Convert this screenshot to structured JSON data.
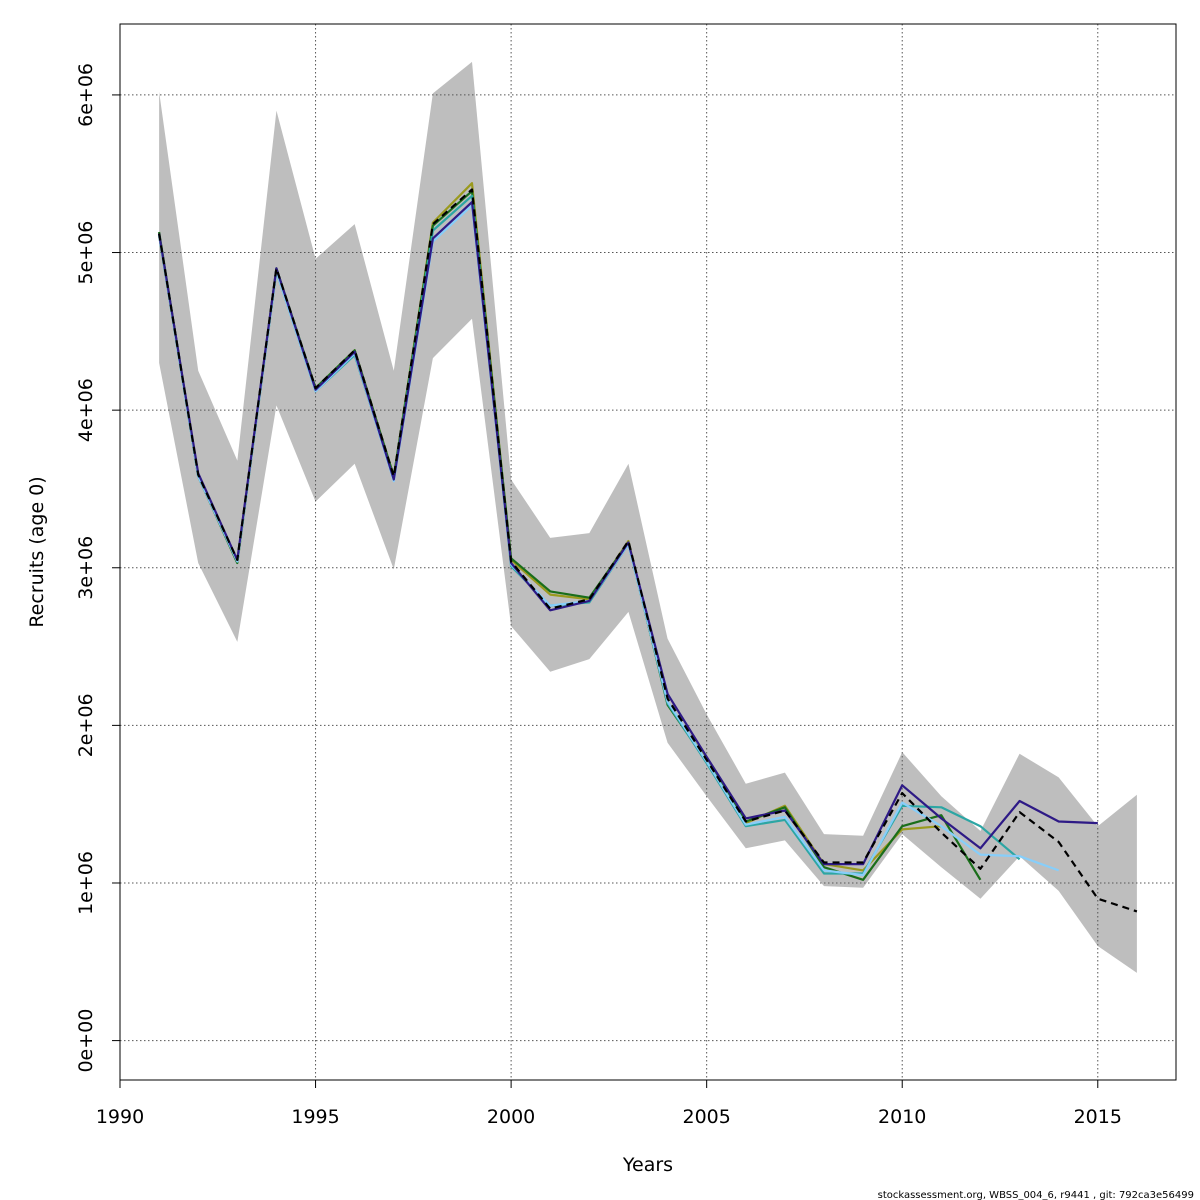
{
  "chart_data": {
    "type": "line",
    "xlabel": "Years",
    "ylabel": "Recruits (age 0)",
    "footnote": "stockassessment.org, WBSS_004_6, r9441 , git: 792ca3e56499",
    "xlim": [
      1990,
      2017
    ],
    "ylim": [
      -250000,
      6450000
    ],
    "x_ticks": [
      1990,
      1995,
      2000,
      2005,
      2010,
      2015
    ],
    "y_ticks": [
      0,
      1000000,
      2000000,
      3000000,
      4000000,
      5000000,
      6000000
    ],
    "y_tick_labels": [
      "0e+00",
      "1e+06",
      "2e+06",
      "3e+06",
      "4e+06",
      "5e+06",
      "6e+06"
    ],
    "grid": true,
    "band": {
      "x": [
        1991,
        1992,
        1993,
        1994,
        1995,
        1996,
        1997,
        1998,
        1999,
        2000,
        2001,
        2002,
        2003,
        2004,
        2005,
        2006,
        2007,
        2008,
        2009,
        2010,
        2011,
        2012,
        2013,
        2014,
        2015,
        2016
      ],
      "upper": [
        6020000,
        4250000,
        3680000,
        5900000,
        4960000,
        5180000,
        4250000,
        6010000,
        6210000,
        3560000,
        3190000,
        3220000,
        3660000,
        2550000,
        2070000,
        1630000,
        1700000,
        1310000,
        1300000,
        1830000,
        1550000,
        1330000,
        1820000,
        1670000,
        1360000,
        1560000
      ],
      "lower": [
        4300000,
        3030000,
        2530000,
        4030000,
        3420000,
        3660000,
        2990000,
        4330000,
        4580000,
        2630000,
        2340000,
        2420000,
        2720000,
        1890000,
        1550000,
        1220000,
        1270000,
        980000,
        970000,
        1310000,
        1100000,
        900000,
        1170000,
        950000,
        600000,
        430000
      ],
      "color": "#bebebe"
    },
    "series": [
      {
        "color": "#000000",
        "dashed": true,
        "x": [
          1991,
          1992,
          1993,
          1994,
          1995,
          1996,
          1997,
          1998,
          1999,
          2000,
          2001,
          2002,
          2003,
          2004,
          2005,
          2006,
          2007,
          2008,
          2009,
          2010,
          2011,
          2012,
          2013,
          2014,
          2015,
          2016
        ],
        "values": [
          5120000,
          3590000,
          3050000,
          4900000,
          4140000,
          4380000,
          3580000,
          5180000,
          5400000,
          3040000,
          2740000,
          2800000,
          3170000,
          2170000,
          1780000,
          1390000,
          1460000,
          1130000,
          1130000,
          1570000,
          1320000,
          1090000,
          1450000,
          1260000,
          900000,
          820000
        ]
      },
      {
        "color": "#2e1a86",
        "dashed": false,
        "x": [
          1991,
          1992,
          1993,
          1994,
          1995,
          1996,
          1997,
          1998,
          1999,
          2000,
          2001,
          2002,
          2003,
          2004,
          2005,
          2006,
          2007,
          2008,
          2009,
          2010,
          2011,
          2012,
          2013,
          2014,
          2015
        ],
        "values": [
          5120000,
          3600000,
          3050000,
          4900000,
          4130000,
          4370000,
          3560000,
          5090000,
          5320000,
          3030000,
          2730000,
          2790000,
          3160000,
          2200000,
          1800000,
          1410000,
          1460000,
          1120000,
          1120000,
          1620000,
          1410000,
          1220000,
          1520000,
          1390000,
          1380000
        ]
      },
      {
        "color": "#87cefa",
        "dashed": false,
        "x": [
          1991,
          1992,
          1993,
          1994,
          1995,
          1996,
          1997,
          1998,
          1999,
          2000,
          2001,
          2002,
          2003,
          2004,
          2005,
          2006,
          2007,
          2008,
          2009,
          2010,
          2011,
          2012,
          2013,
          2014
        ],
        "values": [
          5110000,
          3580000,
          3040000,
          4880000,
          4120000,
          4360000,
          3550000,
          5070000,
          5300000,
          3020000,
          2760000,
          2790000,
          3150000,
          2150000,
          1770000,
          1370000,
          1420000,
          1080000,
          1050000,
          1510000,
          1360000,
          1180000,
          1170000,
          1080000
        ]
      },
      {
        "color": "#2ca6a4",
        "dashed": false,
        "x": [
          1991,
          1992,
          1993,
          1994,
          1995,
          1996,
          1997,
          1998,
          1999,
          2000,
          2001,
          2002,
          2003,
          2004,
          2005,
          2006,
          2007,
          2008,
          2009,
          2010,
          2011,
          2012,
          2013
        ],
        "values": [
          5110000,
          3580000,
          3040000,
          4880000,
          4120000,
          4350000,
          3560000,
          5140000,
          5360000,
          3010000,
          2760000,
          2780000,
          3150000,
          2140000,
          1760000,
          1360000,
          1400000,
          1060000,
          1060000,
          1490000,
          1480000,
          1360000,
          1150000
        ]
      },
      {
        "color": "#1a6e1a",
        "dashed": false,
        "x": [
          1991,
          1992,
          1993,
          1994,
          1995,
          1996,
          1997,
          1998,
          1999,
          2000,
          2001,
          2002,
          2003,
          2004,
          2005,
          2006,
          2007,
          2008,
          2009,
          2010,
          2011,
          2012
        ],
        "values": [
          5130000,
          3580000,
          3030000,
          4900000,
          4140000,
          4380000,
          3580000,
          5170000,
          5390000,
          3060000,
          2850000,
          2810000,
          3160000,
          2130000,
          1770000,
          1390000,
          1480000,
          1100000,
          1020000,
          1360000,
          1430000,
          1020000
        ]
      },
      {
        "color": "#9a9a1e",
        "dashed": false,
        "x": [
          1991,
          1992,
          1993,
          1994,
          1995,
          1996,
          1997,
          1998,
          1999,
          2000,
          2001,
          2002,
          2003,
          2004,
          2005,
          2006,
          2007,
          2008,
          2009,
          2010,
          2011
        ],
        "values": [
          5110000,
          3590000,
          3040000,
          4880000,
          4140000,
          4380000,
          3580000,
          5190000,
          5440000,
          3050000,
          2830000,
          2800000,
          3170000,
          2140000,
          1780000,
          1380000,
          1490000,
          1120000,
          1080000,
          1340000,
          1360000
        ]
      }
    ]
  }
}
